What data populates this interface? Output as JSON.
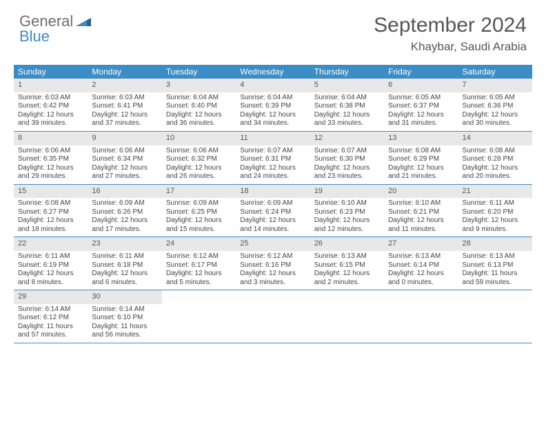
{
  "brand": {
    "part1": "General",
    "part2": "Blue"
  },
  "title": "September 2024",
  "location": "Khaybar, Saudi Arabia",
  "colors": {
    "header_bar": "#3c8dc5",
    "daynum_bg": "#e8e8e8",
    "text": "#444444",
    "logo_gray": "#6d6e71",
    "logo_blue": "#3c8dc5"
  },
  "daysOfWeek": [
    "Sunday",
    "Monday",
    "Tuesday",
    "Wednesday",
    "Thursday",
    "Friday",
    "Saturday"
  ],
  "weeks": [
    [
      {
        "n": "1",
        "sr": "Sunrise: 6:03 AM",
        "ss": "Sunset: 6:42 PM",
        "d1": "Daylight: 12 hours",
        "d2": "and 39 minutes."
      },
      {
        "n": "2",
        "sr": "Sunrise: 6:03 AM",
        "ss": "Sunset: 6:41 PM",
        "d1": "Daylight: 12 hours",
        "d2": "and 37 minutes."
      },
      {
        "n": "3",
        "sr": "Sunrise: 6:04 AM",
        "ss": "Sunset: 6:40 PM",
        "d1": "Daylight: 12 hours",
        "d2": "and 36 minutes."
      },
      {
        "n": "4",
        "sr": "Sunrise: 6:04 AM",
        "ss": "Sunset: 6:39 PM",
        "d1": "Daylight: 12 hours",
        "d2": "and 34 minutes."
      },
      {
        "n": "5",
        "sr": "Sunrise: 6:04 AM",
        "ss": "Sunset: 6:38 PM",
        "d1": "Daylight: 12 hours",
        "d2": "and 33 minutes."
      },
      {
        "n": "6",
        "sr": "Sunrise: 6:05 AM",
        "ss": "Sunset: 6:37 PM",
        "d1": "Daylight: 12 hours",
        "d2": "and 31 minutes."
      },
      {
        "n": "7",
        "sr": "Sunrise: 6:05 AM",
        "ss": "Sunset: 6:36 PM",
        "d1": "Daylight: 12 hours",
        "d2": "and 30 minutes."
      }
    ],
    [
      {
        "n": "8",
        "sr": "Sunrise: 6:06 AM",
        "ss": "Sunset: 6:35 PM",
        "d1": "Daylight: 12 hours",
        "d2": "and 29 minutes."
      },
      {
        "n": "9",
        "sr": "Sunrise: 6:06 AM",
        "ss": "Sunset: 6:34 PM",
        "d1": "Daylight: 12 hours",
        "d2": "and 27 minutes."
      },
      {
        "n": "10",
        "sr": "Sunrise: 6:06 AM",
        "ss": "Sunset: 6:32 PM",
        "d1": "Daylight: 12 hours",
        "d2": "and 26 minutes."
      },
      {
        "n": "11",
        "sr": "Sunrise: 6:07 AM",
        "ss": "Sunset: 6:31 PM",
        "d1": "Daylight: 12 hours",
        "d2": "and 24 minutes."
      },
      {
        "n": "12",
        "sr": "Sunrise: 6:07 AM",
        "ss": "Sunset: 6:30 PM",
        "d1": "Daylight: 12 hours",
        "d2": "and 23 minutes."
      },
      {
        "n": "13",
        "sr": "Sunrise: 6:08 AM",
        "ss": "Sunset: 6:29 PM",
        "d1": "Daylight: 12 hours",
        "d2": "and 21 minutes."
      },
      {
        "n": "14",
        "sr": "Sunrise: 6:08 AM",
        "ss": "Sunset: 6:28 PM",
        "d1": "Daylight: 12 hours",
        "d2": "and 20 minutes."
      }
    ],
    [
      {
        "n": "15",
        "sr": "Sunrise: 6:08 AM",
        "ss": "Sunset: 6:27 PM",
        "d1": "Daylight: 12 hours",
        "d2": "and 18 minutes."
      },
      {
        "n": "16",
        "sr": "Sunrise: 6:09 AM",
        "ss": "Sunset: 6:26 PM",
        "d1": "Daylight: 12 hours",
        "d2": "and 17 minutes."
      },
      {
        "n": "17",
        "sr": "Sunrise: 6:09 AM",
        "ss": "Sunset: 6:25 PM",
        "d1": "Daylight: 12 hours",
        "d2": "and 15 minutes."
      },
      {
        "n": "18",
        "sr": "Sunrise: 6:09 AM",
        "ss": "Sunset: 6:24 PM",
        "d1": "Daylight: 12 hours",
        "d2": "and 14 minutes."
      },
      {
        "n": "19",
        "sr": "Sunrise: 6:10 AM",
        "ss": "Sunset: 6:23 PM",
        "d1": "Daylight: 12 hours",
        "d2": "and 12 minutes."
      },
      {
        "n": "20",
        "sr": "Sunrise: 6:10 AM",
        "ss": "Sunset: 6:21 PM",
        "d1": "Daylight: 12 hours",
        "d2": "and 11 minutes."
      },
      {
        "n": "21",
        "sr": "Sunrise: 6:11 AM",
        "ss": "Sunset: 6:20 PM",
        "d1": "Daylight: 12 hours",
        "d2": "and 9 minutes."
      }
    ],
    [
      {
        "n": "22",
        "sr": "Sunrise: 6:11 AM",
        "ss": "Sunset: 6:19 PM",
        "d1": "Daylight: 12 hours",
        "d2": "and 8 minutes."
      },
      {
        "n": "23",
        "sr": "Sunrise: 6:11 AM",
        "ss": "Sunset: 6:18 PM",
        "d1": "Daylight: 12 hours",
        "d2": "and 6 minutes."
      },
      {
        "n": "24",
        "sr": "Sunrise: 6:12 AM",
        "ss": "Sunset: 6:17 PM",
        "d1": "Daylight: 12 hours",
        "d2": "and 5 minutes."
      },
      {
        "n": "25",
        "sr": "Sunrise: 6:12 AM",
        "ss": "Sunset: 6:16 PM",
        "d1": "Daylight: 12 hours",
        "d2": "and 3 minutes."
      },
      {
        "n": "26",
        "sr": "Sunrise: 6:13 AM",
        "ss": "Sunset: 6:15 PM",
        "d1": "Daylight: 12 hours",
        "d2": "and 2 minutes."
      },
      {
        "n": "27",
        "sr": "Sunrise: 6:13 AM",
        "ss": "Sunset: 6:14 PM",
        "d1": "Daylight: 12 hours",
        "d2": "and 0 minutes."
      },
      {
        "n": "28",
        "sr": "Sunrise: 6:13 AM",
        "ss": "Sunset: 6:13 PM",
        "d1": "Daylight: 11 hours",
        "d2": "and 59 minutes."
      }
    ],
    [
      {
        "n": "29",
        "sr": "Sunrise: 6:14 AM",
        "ss": "Sunset: 6:12 PM",
        "d1": "Daylight: 11 hours",
        "d2": "and 57 minutes."
      },
      {
        "n": "30",
        "sr": "Sunrise: 6:14 AM",
        "ss": "Sunset: 6:10 PM",
        "d1": "Daylight: 11 hours",
        "d2": "and 56 minutes."
      },
      null,
      null,
      null,
      null,
      null
    ]
  ]
}
